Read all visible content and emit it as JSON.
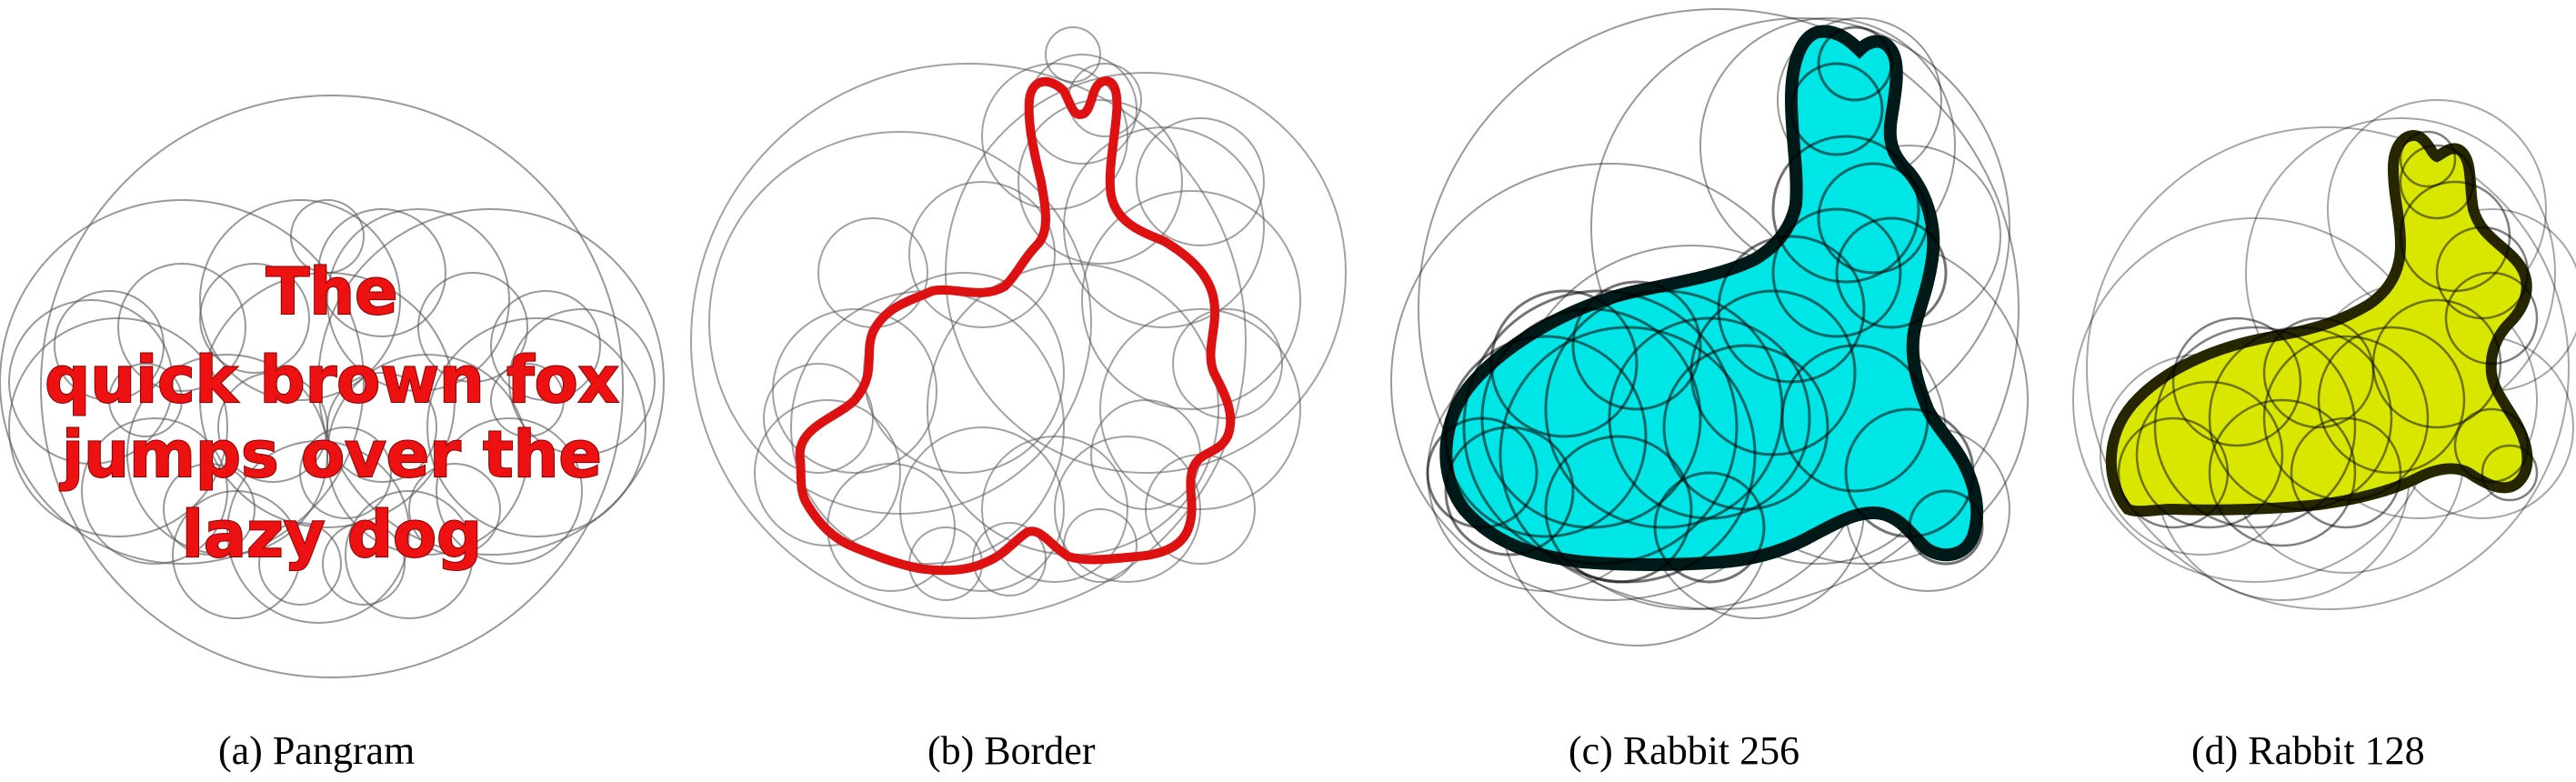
{
  "figure": {
    "panels": [
      {
        "caption": "(a) Pangram",
        "text_lines": [
          "The",
          "quick brown fox",
          "jumps over the",
          "lazy dog"
        ],
        "fill_color": "#ee1111",
        "circle_color": "#555555"
      },
      {
        "caption": "(b) Border",
        "outline_color": "#dd1111",
        "circle_color": "#555555"
      },
      {
        "caption": "(c) Rabbit 256",
        "fill_color": "#00e5e5",
        "circle_color": "#000000"
      },
      {
        "caption": "(d) Rabbit 128",
        "fill_color": "#d9e600",
        "circle_color": "#000000"
      }
    ]
  }
}
